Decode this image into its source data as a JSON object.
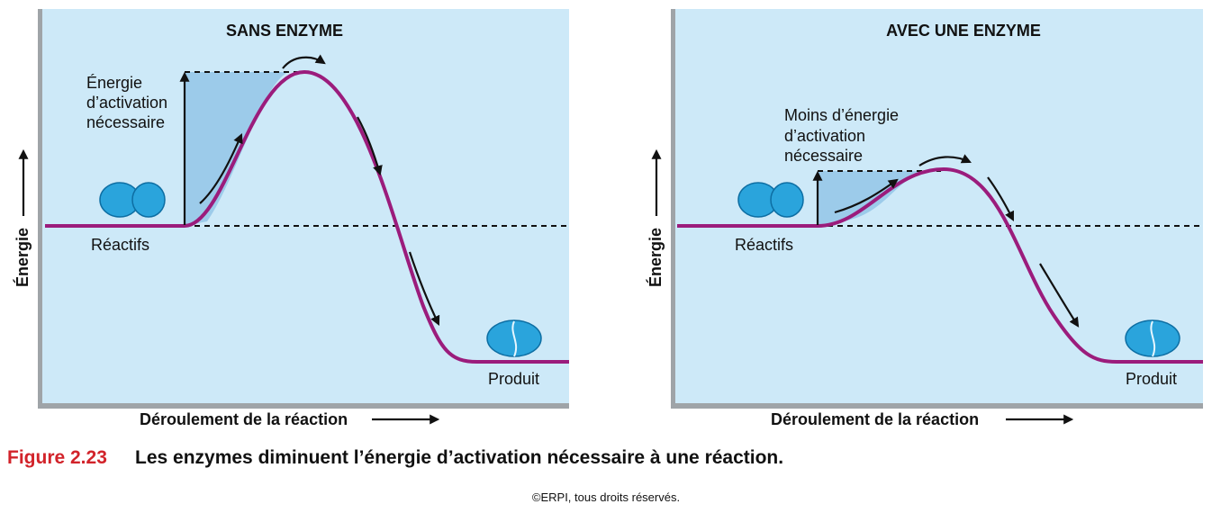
{
  "panels": [
    {
      "title": "SANS ENZYME",
      "y_axis_label": "Énergie",
      "x_axis_label": "Déroulement de la réaction",
      "activation_label": [
        "Énergie",
        "d’activation",
        "nécessaire"
      ],
      "reactant_label": "Réactifs",
      "product_label": "Produit"
    },
    {
      "title": "AVEC UNE ENZYME",
      "y_axis_label": "Énergie",
      "x_axis_label": "Déroulement de la réaction",
      "activation_label": [
        "Moins d’énergie",
        "d’activation",
        "nécessaire"
      ],
      "reactant_label": "Réactifs",
      "product_label": "Produit"
    }
  ],
  "caption": {
    "number": "Figure 2.23",
    "text": "Les enzymes diminuent l’énergie d’activation nécessaire à une réaction."
  },
  "copyright": "©ERPI, tous droits réservés."
}
